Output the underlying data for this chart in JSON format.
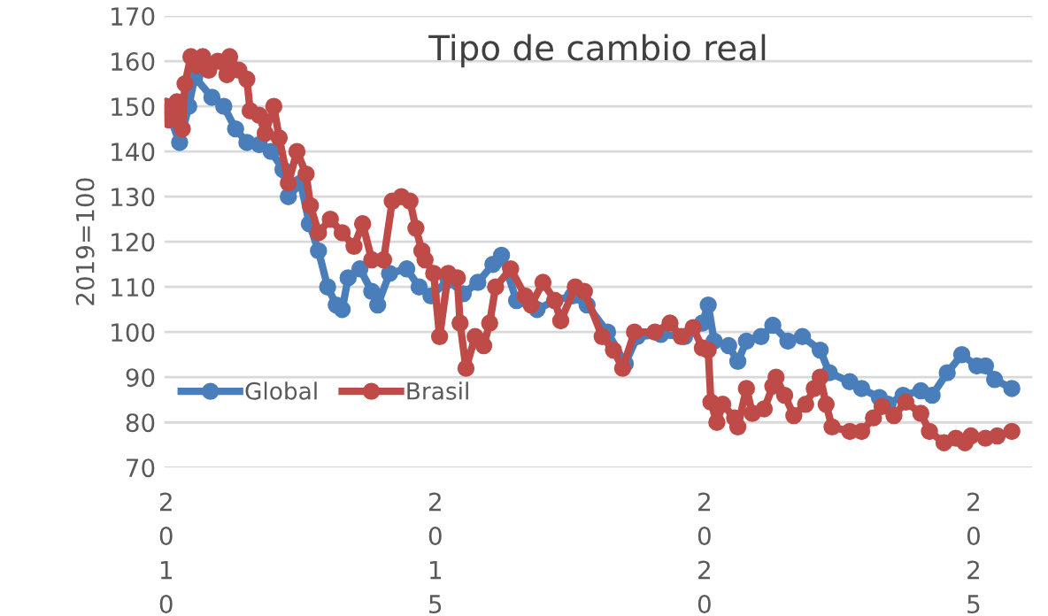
{
  "chart_data": {
    "type": "line",
    "title": "Tipo de cambio real",
    "ylabel": "2019=100",
    "xlim": [
      2009.97,
      2026.09
    ],
    "xticks": [
      2010,
      2015,
      2020,
      2025
    ],
    "ylim": [
      70,
      170
    ],
    "yticks": [
      70,
      80,
      90,
      100,
      110,
      120,
      130,
      140,
      150,
      160,
      170
    ],
    "grid": "y",
    "legend": "left",
    "marker": "circle",
    "line_style": "solid",
    "series": [
      {
        "name": "Global",
        "color": "#4a7ebb",
        "x": [
          2010.0,
          2010.09,
          2010.25,
          2010.42,
          2010.53,
          2010.85,
          2011.07,
          2011.29,
          2011.5,
          2011.73,
          2011.95,
          2012.17,
          2012.27,
          2012.5,
          2012.66,
          2012.83,
          2013.0,
          2013.16,
          2013.27,
          2013.38,
          2013.6,
          2013.82,
          2013.93,
          2014.15,
          2014.47,
          2014.7,
          2014.92,
          2015.24,
          2015.52,
          2015.79,
          2016.07,
          2016.23,
          2016.51,
          2016.89,
          2017.22,
          2017.55,
          2017.82,
          2018.2,
          2018.53,
          2018.75,
          2019.19,
          2019.63,
          2019.96,
          2020.07,
          2020.18,
          2020.45,
          2020.62,
          2020.78,
          2021.05,
          2021.27,
          2021.55,
          2021.82,
          2022.15,
          2022.32,
          2022.7,
          2022.92,
          2023.25,
          2023.41,
          2023.69,
          2024.02,
          2024.23,
          2024.51,
          2024.78,
          2025.06,
          2025.22,
          2025.39,
          2025.71
        ],
        "values": [
          150,
          147,
          142,
          150,
          156.5,
          152,
          150,
          145,
          142,
          141.5,
          140,
          136,
          130,
          133,
          124,
          118,
          110,
          106,
          105,
          112,
          114,
          109,
          106,
          113,
          114,
          110,
          108,
          111.5,
          108.5,
          111,
          115,
          117,
          107,
          105,
          107,
          108,
          106,
          100,
          93,
          99,
          99.5,
          99,
          102,
          106,
          98,
          97,
          93.5,
          98,
          99,
          101.5,
          98,
          99,
          96,
          91,
          89,
          87.5,
          85.5,
          84,
          86,
          87,
          86,
          91,
          95,
          92.5,
          92.5,
          89.5,
          87.5
        ]
      },
      {
        "name": "Brasil",
        "color": "#be4b48",
        "x": [
          2010.0,
          2010.05,
          2010.2,
          2010.3,
          2010.35,
          2010.46,
          2010.57,
          2010.68,
          2010.79,
          2010.96,
          2011.13,
          2011.18,
          2011.35,
          2011.5,
          2011.56,
          2011.73,
          2011.84,
          2012.0,
          2012.1,
          2012.27,
          2012.43,
          2012.6,
          2012.68,
          2012.83,
          2013.05,
          2013.27,
          2013.49,
          2013.65,
          2013.82,
          2014.04,
          2014.2,
          2014.37,
          2014.53,
          2014.64,
          2014.75,
          2014.81,
          2014.97,
          2015.08,
          2015.24,
          2015.41,
          2015.46,
          2015.57,
          2015.74,
          2015.9,
          2016.01,
          2016.12,
          2016.4,
          2016.67,
          2016.78,
          2017.0,
          2017.22,
          2017.33,
          2017.6,
          2017.77,
          2018.1,
          2018.31,
          2018.48,
          2018.7,
          2019.08,
          2019.36,
          2019.57,
          2019.79,
          2019.96,
          2020.07,
          2020.12,
          2020.23,
          2020.34,
          2020.56,
          2020.62,
          2020.78,
          2020.89,
          2021.11,
          2021.27,
          2021.33,
          2021.49,
          2021.66,
          2021.88,
          2022.04,
          2022.15,
          2022.26,
          2022.37,
          2022.7,
          2022.92,
          2023.14,
          2023.3,
          2023.52,
          2023.74,
          2024.02,
          2024.18,
          2024.45,
          2024.67,
          2024.84,
          2024.95,
          2025.22,
          2025.44,
          2025.71
        ],
        "values": [
          150,
          147,
          151,
          145,
          155,
          161,
          159,
          161,
          158,
          160,
          157,
          161,
          158,
          156,
          149,
          148,
          144,
          150,
          143,
          133,
          140,
          135,
          128,
          122,
          125,
          122,
          119,
          124,
          116,
          116,
          129,
          130,
          129,
          123,
          118,
          116,
          113,
          99,
          113,
          112,
          102,
          92,
          99,
          97,
          102,
          110,
          114,
          108,
          106,
          111,
          107,
          102.5,
          110,
          109,
          99,
          96,
          92,
          100,
          100,
          102,
          99,
          101,
          96.5,
          96,
          84.5,
          80,
          84,
          81,
          79,
          87.5,
          82,
          83,
          88,
          90,
          86,
          81.5,
          84,
          87.5,
          90,
          84,
          79,
          78,
          78,
          81,
          83.5,
          81.5,
          84.5,
          82,
          78,
          75.5,
          76.5,
          75.5,
          77,
          76.5,
          77,
          78
        ]
      }
    ]
  }
}
